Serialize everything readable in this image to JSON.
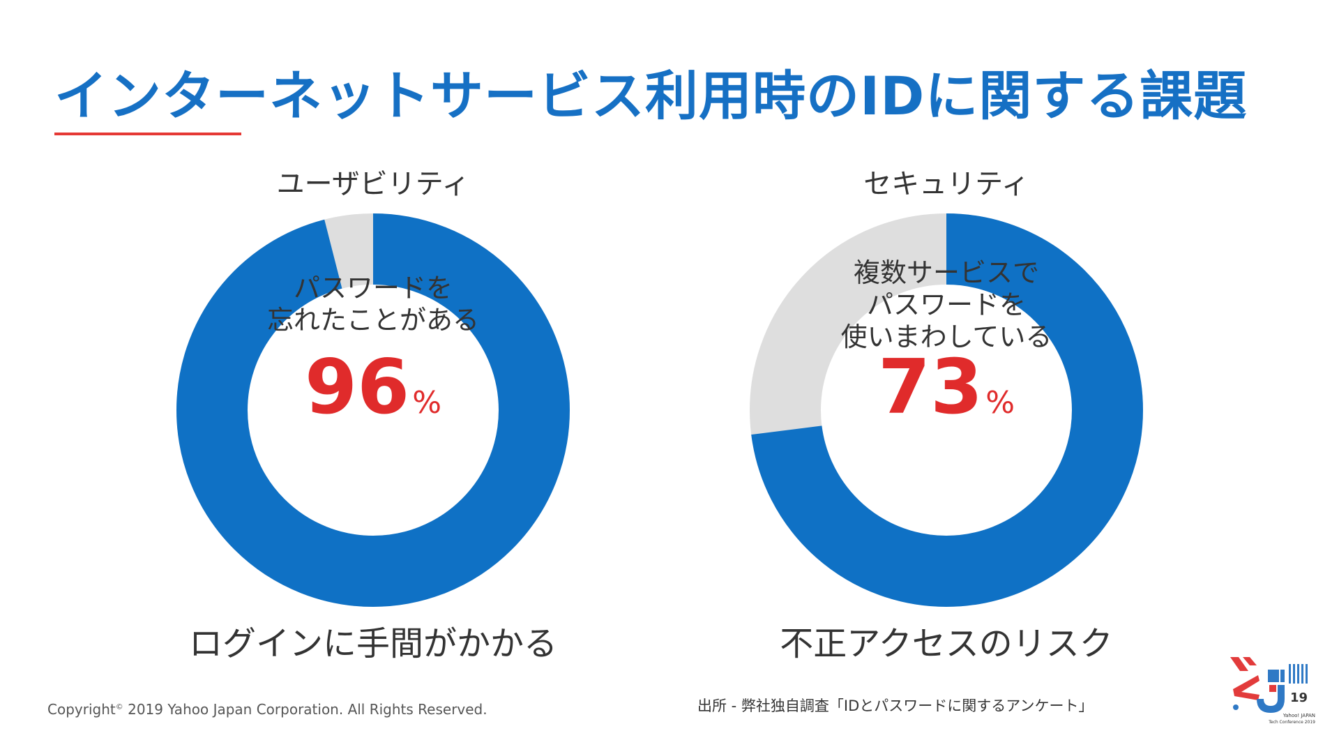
{
  "title": "インターネットサービス利用時のIDに関する課題",
  "colors": {
    "title": "#1670c4",
    "accent_underline": "#e53935",
    "donut_fill": "#0f71c5",
    "donut_rest": "#dedede",
    "percent_text": "#e02b2b",
    "logo_red": "#e23b3b",
    "logo_blue": "#2f79c5"
  },
  "chart_data": [
    {
      "type": "pie",
      "title": "ユーザビリティ",
      "center_text": [
        "パスワードを",
        "忘れたことがある"
      ],
      "value": 96,
      "unit": "%",
      "caption": "ログインに手間がかかる"
    },
    {
      "type": "pie",
      "title": "セキュリティ",
      "center_text": [
        "複数サービスで",
        "パスワードを",
        "使いまわしている"
      ],
      "value": 73,
      "unit": "%",
      "caption": "不正アクセスのリスク"
    }
  ],
  "footer": {
    "copyright_prefix": "Copyright",
    "copyright_mark": "©",
    "copyright_rest": " 2019  Yahoo Japan Corporation. All Rights Reserved.",
    "source": "出所 - 弊社独自調査「IDとパスワードに関するアンケート」"
  },
  "logo": {
    "number": "19",
    "line1": "Yahoo! JAPAN",
    "line2": "Tech Conference 2019"
  }
}
